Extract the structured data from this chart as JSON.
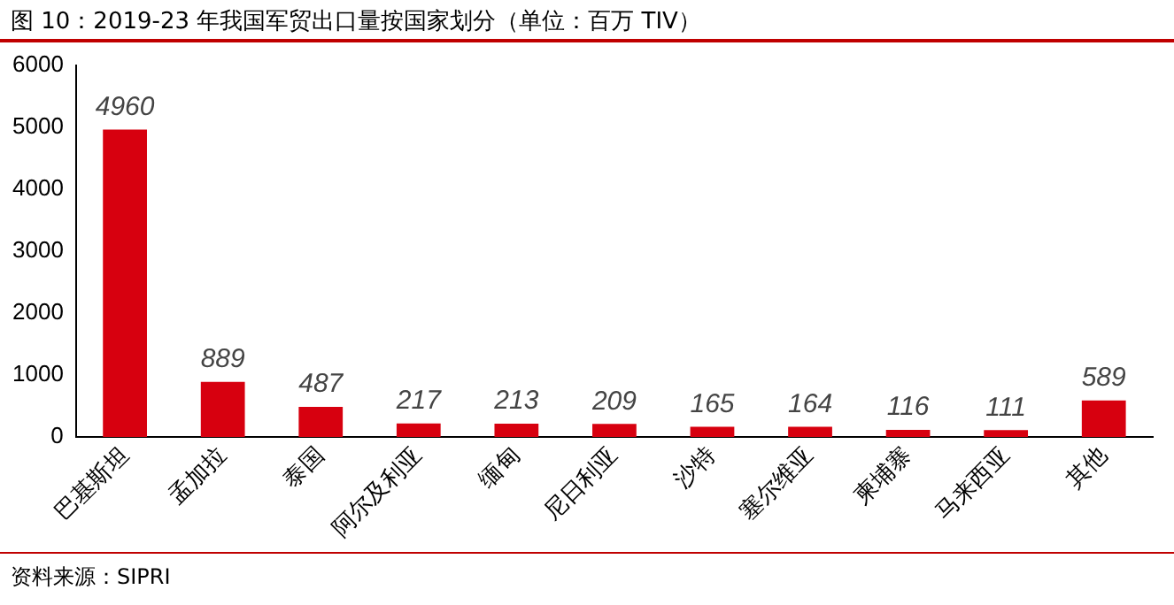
{
  "chart_data": {
    "type": "bar",
    "title": "图 10：2019-23 年我国军贸出口量按国家划分（单位：百万 TIV）",
    "categories": [
      "巴基斯坦",
      "孟加拉",
      "泰国",
      "阿尔及利亚",
      "缅甸",
      "尼日利亚",
      "沙特",
      "塞尔维亚",
      "柬埔寨",
      "马来西亚",
      "其他"
    ],
    "values": [
      4960,
      889,
      487,
      217,
      213,
      209,
      165,
      164,
      116,
      111,
      589
    ],
    "color": "#d7000f",
    "ylim": [
      0,
      6000
    ],
    "yticks": [
      0,
      1000,
      2000,
      3000,
      4000,
      5000,
      6000
    ],
    "grid": false,
    "legend": false,
    "data_labels": true,
    "annotations": [
      "资料来源：SIPRI"
    ]
  }
}
